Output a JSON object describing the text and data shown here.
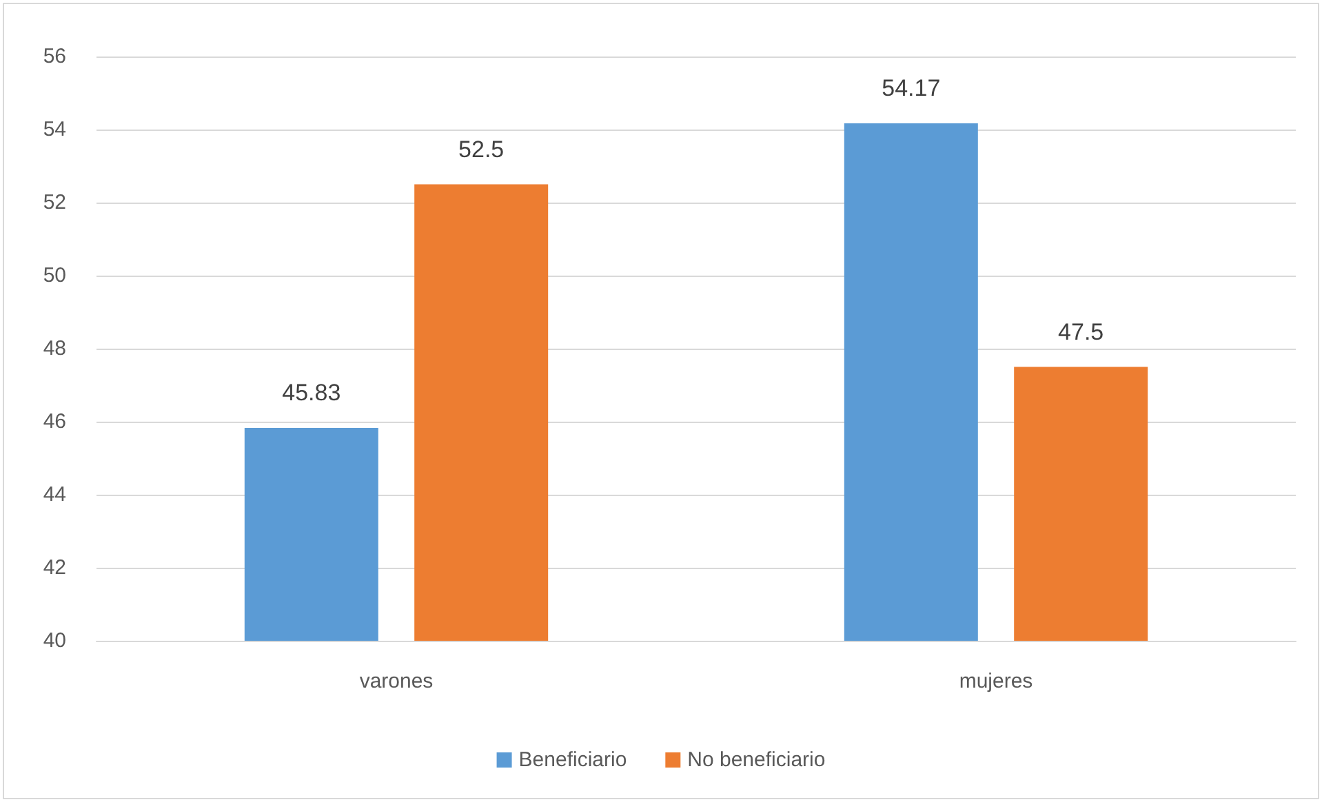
{
  "chart_data": {
    "type": "bar",
    "categories": [
      "varones",
      "mujeres"
    ],
    "series": [
      {
        "name": "Beneficiario",
        "color": "#5b9bd5",
        "values": [
          45.83,
          54.17
        ]
      },
      {
        "name": "No beneficiario",
        "color": "#ed7d31",
        "values": [
          52.5,
          47.5
        ]
      }
    ],
    "ylim": [
      40,
      56
    ],
    "yticks": [
      40,
      42,
      44,
      46,
      48,
      50,
      52,
      54,
      56
    ],
    "grid": "y",
    "legend": "bottom",
    "data_labels": true
  }
}
